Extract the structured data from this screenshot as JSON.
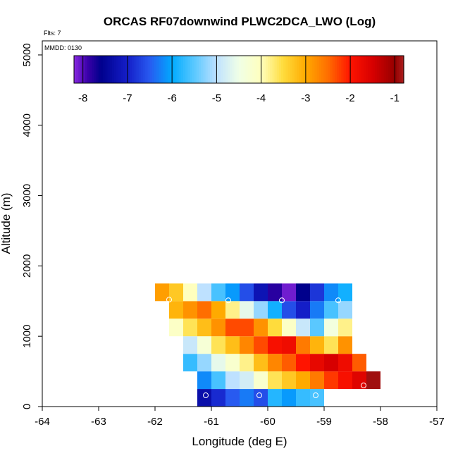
{
  "chart_data": {
    "type": "heatmap",
    "title": "ORCAS RF07downwind PLWC2DCA_LWO (Log)",
    "annotation_flts": "Flts: 7",
    "annotation_mmdd": "MMDD: 0130",
    "xlabel": "Longitude (deg E)",
    "ylabel": "Altitude (m)",
    "xlim": [
      -64,
      -57
    ],
    "ylim": [
      0,
      5200
    ],
    "x_ticks": [
      -64,
      -63,
      -62,
      -61,
      -60,
      -59,
      -58,
      -57
    ],
    "y_ticks": [
      0,
      1000,
      2000,
      3000,
      4000,
      5000
    ],
    "cell_width_deg": 0.25,
    "cell_height_m": 250,
    "colorbar": {
      "range": [
        -8.2,
        -0.8
      ],
      "ticks": [
        -8,
        -7,
        -6,
        -5,
        -4,
        -3,
        -2,
        -1
      ]
    },
    "cells": [
      {
        "x0": -61.25,
        "y0": 0,
        "v": -7.3
      },
      {
        "x0": -61.0,
        "y0": 0,
        "v": -6.9
      },
      {
        "x0": -60.75,
        "y0": 0,
        "v": -6.5
      },
      {
        "x0": -60.5,
        "y0": 0,
        "v": -6.3
      },
      {
        "x0": -60.25,
        "y0": 0,
        "v": -6.6
      },
      {
        "x0": -60.0,
        "y0": 0,
        "v": -5.8
      },
      {
        "x0": -59.75,
        "y0": 0,
        "v": -6.1
      },
      {
        "x0": -59.5,
        "y0": 0,
        "v": -5.7
      },
      {
        "x0": -59.25,
        "y0": 0,
        "v": -5.6
      },
      {
        "x0": -61.25,
        "y0": 250,
        "v": -6.2
      },
      {
        "x0": -61.0,
        "y0": 250,
        "v": -5.6
      },
      {
        "x0": -60.75,
        "y0": 250,
        "v": -5.0
      },
      {
        "x0": -60.5,
        "y0": 250,
        "v": -4.8
      },
      {
        "x0": -60.25,
        "y0": 250,
        "v": -4.2
      },
      {
        "x0": -60.0,
        "y0": 250,
        "v": -3.6
      },
      {
        "x0": -59.75,
        "y0": 250,
        "v": -3.3
      },
      {
        "x0": -59.5,
        "y0": 250,
        "v": -3.0
      },
      {
        "x0": -59.25,
        "y0": 250,
        "v": -2.6
      },
      {
        "x0": -59.0,
        "y0": 250,
        "v": -2.2
      },
      {
        "x0": -58.75,
        "y0": 250,
        "v": -1.9
      },
      {
        "x0": -58.5,
        "y0": 250,
        "v": -1.6
      },
      {
        "x0": -58.25,
        "y0": 250,
        "v": -0.9
      },
      {
        "x0": -61.5,
        "y0": 500,
        "v": -5.7
      },
      {
        "x0": -61.25,
        "y0": 500,
        "v": -5.2
      },
      {
        "x0": -61.0,
        "y0": 500,
        "v": -4.6
      },
      {
        "x0": -60.75,
        "y0": 500,
        "v": -4.2
      },
      {
        "x0": -60.5,
        "y0": 500,
        "v": -3.8
      },
      {
        "x0": -60.25,
        "y0": 500,
        "v": -3.2
      },
      {
        "x0": -60.0,
        "y0": 500,
        "v": -2.7
      },
      {
        "x0": -59.75,
        "y0": 500,
        "v": -2.4
      },
      {
        "x0": -59.5,
        "y0": 500,
        "v": -2.0
      },
      {
        "x0": -59.25,
        "y0": 500,
        "v": -1.7
      },
      {
        "x0": -59.0,
        "y0": 500,
        "v": -1.5
      },
      {
        "x0": -58.75,
        "y0": 500,
        "v": -1.8
      },
      {
        "x0": -58.5,
        "y0": 500,
        "v": -2.4
      },
      {
        "x0": -61.5,
        "y0": 750,
        "v": -4.9
      },
      {
        "x0": -61.25,
        "y0": 750,
        "v": -4.3
      },
      {
        "x0": -61.0,
        "y0": 750,
        "v": -3.6
      },
      {
        "x0": -60.75,
        "y0": 750,
        "v": -3.2
      },
      {
        "x0": -60.5,
        "y0": 750,
        "v": -2.7
      },
      {
        "x0": -60.25,
        "y0": 750,
        "v": -2.3
      },
      {
        "x0": -60.0,
        "y0": 750,
        "v": -1.9
      },
      {
        "x0": -59.75,
        "y0": 750,
        "v": -1.8
      },
      {
        "x0": -59.5,
        "y0": 750,
        "v": -2.6
      },
      {
        "x0": -59.25,
        "y0": 750,
        "v": -3.1
      },
      {
        "x0": -59.0,
        "y0": 750,
        "v": -3.6
      },
      {
        "x0": -58.75,
        "y0": 750,
        "v": -2.8
      },
      {
        "x0": -61.75,
        "y0": 1000,
        "v": -4.1
      },
      {
        "x0": -61.5,
        "y0": 1000,
        "v": -3.6
      },
      {
        "x0": -61.25,
        "y0": 1000,
        "v": -3.2
      },
      {
        "x0": -61.0,
        "y0": 1000,
        "v": -2.8
      },
      {
        "x0": -60.75,
        "y0": 1000,
        "v": -2.3
      },
      {
        "x0": -60.5,
        "y0": 1000,
        "v": -2.3
      },
      {
        "x0": -60.25,
        "y0": 1000,
        "v": -2.8
      },
      {
        "x0": -60.0,
        "y0": 1000,
        "v": -3.5
      },
      {
        "x0": -59.75,
        "y0": 1000,
        "v": -4.1
      },
      {
        "x0": -59.5,
        "y0": 1000,
        "v": -4.9
      },
      {
        "x0": -59.25,
        "y0": 1000,
        "v": -5.5
      },
      {
        "x0": -59.0,
        "y0": 1000,
        "v": -4.4
      },
      {
        "x0": -58.75,
        "y0": 1000,
        "v": -3.8
      },
      {
        "x0": -61.75,
        "y0": 1250,
        "v": -3.1
      },
      {
        "x0": -61.5,
        "y0": 1250,
        "v": -2.8
      },
      {
        "x0": -61.25,
        "y0": 1250,
        "v": -2.5
      },
      {
        "x0": -61.0,
        "y0": 1250,
        "v": -3.0
      },
      {
        "x0": -60.75,
        "y0": 1250,
        "v": -3.8
      },
      {
        "x0": -60.5,
        "y0": 1250,
        "v": -4.6
      },
      {
        "x0": -60.25,
        "y0": 1250,
        "v": -5.2
      },
      {
        "x0": -60.0,
        "y0": 1250,
        "v": -5.9
      },
      {
        "x0": -59.75,
        "y0": 1250,
        "v": -6.6
      },
      {
        "x0": -59.5,
        "y0": 1250,
        "v": -7.0
      },
      {
        "x0": -59.25,
        "y0": 1250,
        "v": -6.3
      },
      {
        "x0": -59.0,
        "y0": 1250,
        "v": -5.6
      },
      {
        "x0": -58.75,
        "y0": 1250,
        "v": -5.2
      },
      {
        "x0": -62.0,
        "y0": 1500,
        "v": -2.9
      },
      {
        "x0": -61.75,
        "y0": 1500,
        "v": -3.3
      },
      {
        "x0": -61.5,
        "y0": 1500,
        "v": -4.0
      },
      {
        "x0": -61.25,
        "y0": 1500,
        "v": -5.0
      },
      {
        "x0": -61.0,
        "y0": 1500,
        "v": -5.6
      },
      {
        "x0": -60.75,
        "y0": 1500,
        "v": -6.1
      },
      {
        "x0": -60.5,
        "y0": 1500,
        "v": -6.6
      },
      {
        "x0": -60.25,
        "y0": 1500,
        "v": -7.2
      },
      {
        "x0": -60.0,
        "y0": 1500,
        "v": -7.8
      },
      {
        "x0": -59.75,
        "y0": 1500,
        "v": -8.1
      },
      {
        "x0": -59.5,
        "y0": 1500,
        "v": -7.6
      },
      {
        "x0": -59.25,
        "y0": 1500,
        "v": -6.8
      },
      {
        "x0": -59.0,
        "y0": 1500,
        "v": -6.2
      },
      {
        "x0": -58.75,
        "y0": 1500,
        "v": -5.9
      }
    ],
    "markers": [
      {
        "x": -61.75,
        "y": 1520
      },
      {
        "x": -60.7,
        "y": 1510
      },
      {
        "x": -59.75,
        "y": 1510
      },
      {
        "x": -58.75,
        "y": 1510
      },
      {
        "x": -61.1,
        "y": 160
      },
      {
        "x": -60.15,
        "y": 160
      },
      {
        "x": -59.15,
        "y": 160
      },
      {
        "x": -58.3,
        "y": 300
      }
    ]
  }
}
